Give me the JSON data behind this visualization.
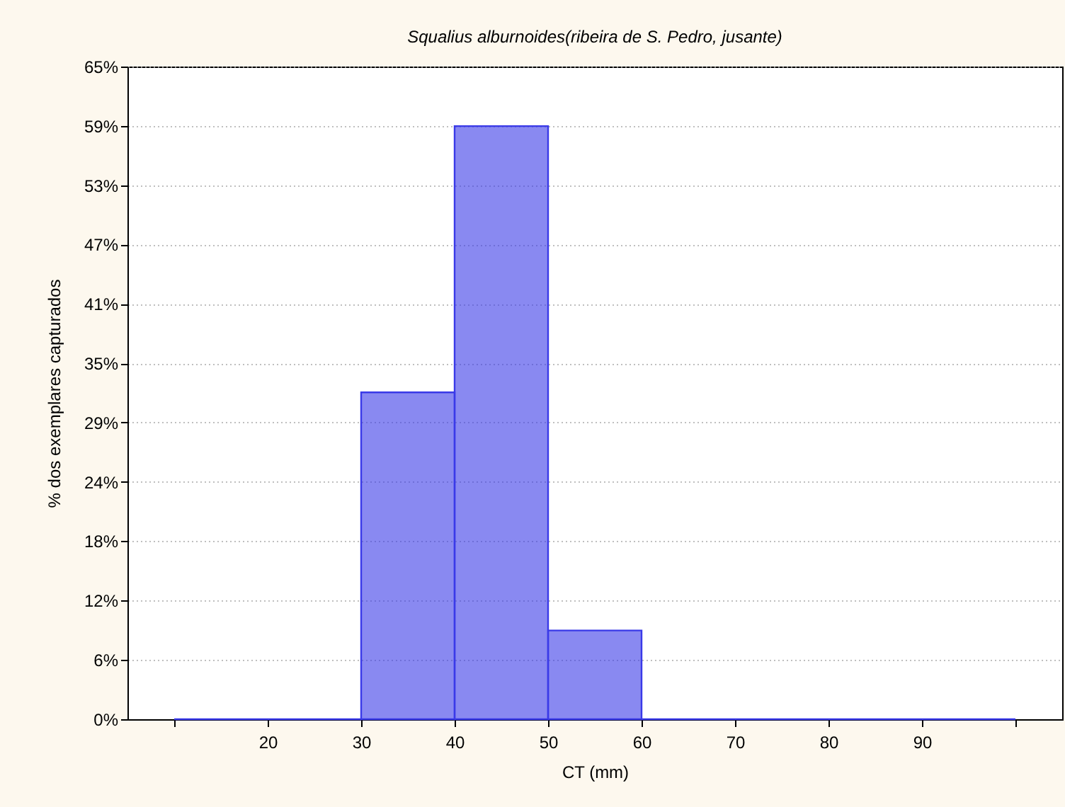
{
  "chart_data": {
    "type": "histogram",
    "title": "Squalius alburnoides(ribeira de S. Pedro, jusante)",
    "xlabel": "CT (mm)",
    "ylabel": "% dos exemplares capturados",
    "bins": [
      10,
      20,
      30,
      40,
      50,
      60,
      70,
      80,
      90,
      100
    ],
    "values": [
      0,
      0,
      32.4,
      58.8,
      8.8,
      0,
      0,
      0,
      0
    ],
    "color": "#3a3ae8",
    "xlim": [
      5,
      105
    ],
    "xticks": [
      {
        "value": 10,
        "label": null
      },
      20,
      30,
      40,
      50,
      60,
      70,
      80,
      90,
      {
        "value": 100,
        "label": null
      }
    ],
    "ylim": [
      0,
      64.7
    ],
    "yticks": [
      {
        "value": 0,
        "label": "0%"
      },
      {
        "value": 5.88,
        "label": "6%"
      },
      {
        "value": 11.76,
        "label": "12%"
      },
      {
        "value": 17.65,
        "label": "18%"
      },
      {
        "value": 23.53,
        "label": "24%"
      },
      {
        "value": 29.41,
        "label": "29%"
      },
      {
        "value": 35.29,
        "label": "35%"
      },
      {
        "value": 41.18,
        "label": "41%"
      },
      {
        "value": 47.06,
        "label": "47%"
      },
      {
        "value": 52.94,
        "label": "53%"
      },
      {
        "value": 58.82,
        "label": "59%"
      },
      {
        "value": 64.7,
        "label": "65%"
      }
    ],
    "grid": "y"
  }
}
